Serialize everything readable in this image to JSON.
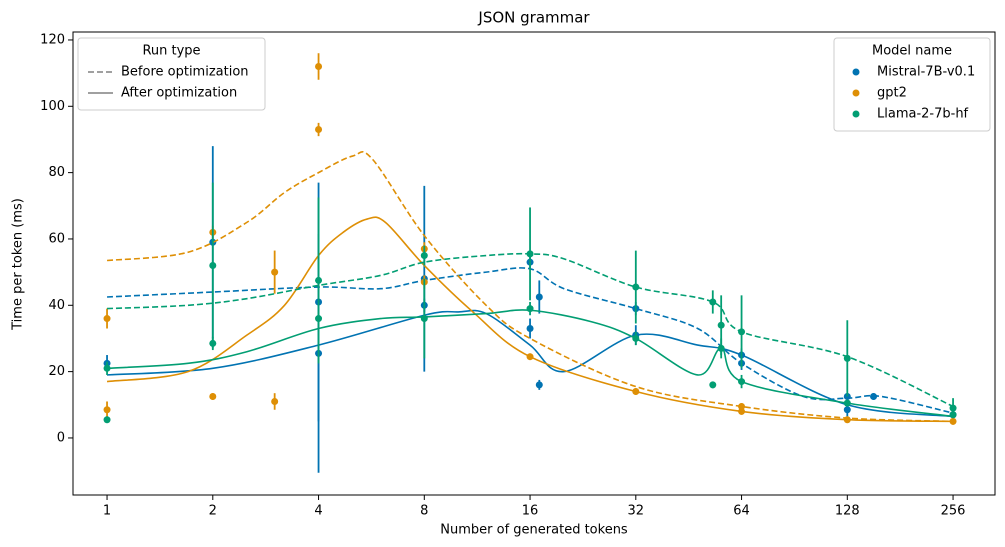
{
  "chart_data": {
    "type": "line",
    "title": "JSON grammar",
    "x_label": "Number of generated tokens",
    "y_label": "Time per token (ms)",
    "log_x": true,
    "log_base": 2,
    "xlim": [
      0.8,
      337
    ],
    "xticks": [
      1,
      2,
      4,
      8,
      16,
      32,
      64,
      128,
      256
    ],
    "ylim": [
      -17.2,
      122.4
    ],
    "yticks": [
      0,
      20,
      40,
      60,
      80,
      100,
      120
    ],
    "run_type_legend": {
      "title": "Run type",
      "loc": "upper left",
      "color": "#808080"
    },
    "model_legend": {
      "title": "Model name",
      "loc": "upper right"
    },
    "run_types": [
      {
        "name": "Before optimization",
        "dashed": true
      },
      {
        "name": "After optimization",
        "dashed": false
      }
    ],
    "models": [
      {
        "name": "Mistral-7B-v0.1",
        "color": "#0173b2",
        "x": [
          1,
          2,
          4,
          4,
          8,
          8,
          16,
          16,
          17,
          17,
          32,
          32,
          64,
          64,
          128,
          128,
          152,
          256
        ],
        "values": [
          22.5,
          59,
          41,
          25.5,
          48,
          40,
          53,
          33,
          42.5,
          16,
          39,
          31,
          25,
          22.5,
          8.5,
          12.5,
          12.5,
          7
        ],
        "errors": [
          2.5,
          29,
          36,
          36,
          28,
          2,
          2,
          3,
          5,
          1.5,
          2,
          3,
          2,
          2,
          2,
          1,
          1,
          1
        ],
        "lines": [
          {
            "x": [
              1,
              2,
              4,
              6,
              8,
              12,
              16,
              20,
              32,
              48,
              64,
              96,
              128,
              160,
              256
            ],
            "values": [
              42.5,
              44,
              45.5,
              45,
              47.5,
              50,
              51,
              45,
              39,
              33,
              22.5,
              12.5,
              12,
              12.5,
              7.5
            ]
          },
          {
            "x": [
              1,
              2,
              4,
              8,
              10,
              12,
              16,
              20,
              32,
              48,
              64,
              128,
              256
            ],
            "values": [
              19,
              21,
              28,
              37,
              38,
              37.5,
              28,
              20,
              31,
              28,
              25,
              10,
              6.5
            ]
          }
        ]
      },
      {
        "name": "gpt2",
        "color": "#de8f05",
        "x": [
          1,
          1,
          2,
          2,
          3,
          3,
          4,
          4,
          8,
          8,
          16,
          32,
          64,
          64,
          128,
          256
        ],
        "values": [
          36,
          8.5,
          62,
          12.5,
          50,
          11,
          112,
          93,
          57,
          47,
          24.5,
          14,
          8,
          9.5,
          5.5,
          5
        ],
        "errors": [
          3,
          2.5,
          2,
          1,
          6.5,
          2.5,
          4,
          2,
          2,
          2,
          1,
          1,
          1,
          1,
          1,
          1
        ],
        "lines": [
          {
            "x": [
              1,
              1.7,
              2.5,
              3.2,
              4,
              5,
              5.7,
              8,
              12,
              16,
              32,
              64,
              128,
              256
            ],
            "values": [
              53.5,
              56,
              65,
              74,
              80,
              85,
              84,
              61,
              40,
              30,
              15.5,
              9.5,
              6,
              5
            ]
          },
          {
            "x": [
              1,
              1.7,
              2.5,
              3.2,
              4,
              4.7,
              5.5,
              6.2,
              8,
              11,
              16,
              32,
              64,
              128,
              256
            ],
            "values": [
              17,
              20,
              31,
              40,
              55,
              62,
              66,
              65,
              52,
              38,
              24.5,
              14,
              8,
              5.5,
              5
            ]
          }
        ]
      },
      {
        "name": "Llama-2-7b-hf",
        "color": "#029e73",
        "x": [
          1,
          1,
          2,
          2,
          4,
          4,
          8,
          8,
          16,
          16,
          32,
          32,
          53,
          53,
          56,
          56,
          64,
          64,
          128,
          128,
          256,
          256
        ],
        "values": [
          21,
          5.5,
          52,
          28.5,
          47.5,
          36,
          55,
          36,
          55.5,
          39,
          45.5,
          30,
          41,
          16,
          34,
          27,
          32,
          17,
          24,
          10.5,
          9,
          7
        ],
        "errors": [
          2,
          1,
          25,
          2,
          25,
          2,
          3,
          12,
          14,
          2,
          11,
          2,
          3.5,
          1,
          9,
          3,
          11,
          2,
          11.5,
          1,
          3,
          1
        ],
        "lines": [
          {
            "x": [
              1,
              1.7,
              2.5,
              4,
              6,
              8,
              12,
              16,
              20,
              32,
              53,
              64,
              128,
              256
            ],
            "values": [
              39,
              40,
              42,
              46,
              49,
              53,
              55,
              55.5,
              54,
              45.5,
              41,
              32,
              24.5,
              9.5
            ]
          },
          {
            "x": [
              1,
              1.7,
              2.5,
              4,
              6,
              8,
              12,
              16,
              24,
              32,
              48,
              56,
              64,
              128,
              256
            ],
            "values": [
              21,
              22.5,
              26,
              33,
              36,
              36.5,
              37.5,
              38.5,
              35,
              30,
              19,
              27,
              17,
              10.5,
              6.5
            ]
          }
        ]
      }
    ]
  }
}
